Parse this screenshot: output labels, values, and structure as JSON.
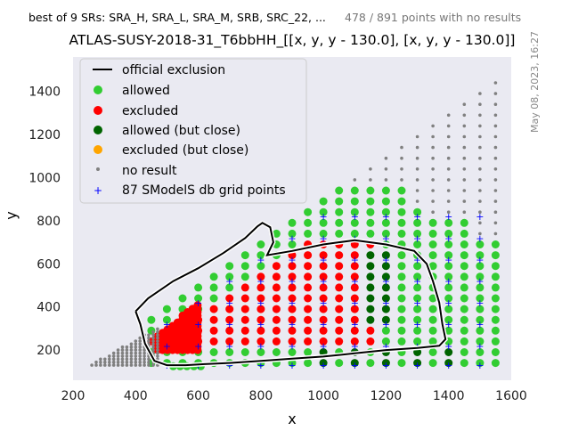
{
  "header": {
    "srs_text": "best of 9 SRs: SRA_H, SRA_L, SRA_M, SRB, SRC_22, ...",
    "no_result_text": "478 / 891 points with no results",
    "title": "ATLAS-SUSY-2018-31_T6bbHH_[[x, y, y - 130.0], [x, y, y - 130.0]]",
    "date": "May 08, 2023, 16:27"
  },
  "chart_data": {
    "type": "scatter",
    "xlabel": "x",
    "ylabel": "y",
    "xlim": [
      200,
      1600
    ],
    "ylim": [
      60,
      1560
    ],
    "xticks": [
      "200",
      "400",
      "600",
      "800",
      "1000",
      "1200",
      "1400",
      "1600"
    ],
    "yticks": [
      "200",
      "400",
      "600",
      "800",
      "1000",
      "1200",
      "1400"
    ],
    "grid": false,
    "legend_position": "top-left",
    "legend": [
      {
        "key": "official",
        "label": "official exclusion"
      },
      {
        "key": "allowed",
        "label": "allowed"
      },
      {
        "key": "excluded",
        "label": "excluded"
      },
      {
        "key": "allowed_close",
        "label": "allowed (but close)"
      },
      {
        "key": "excluded_close",
        "label": "excluded (but close)"
      },
      {
        "key": "noresult",
        "label": "no result"
      },
      {
        "key": "grid",
        "label": "87 SModelS db grid points"
      }
    ],
    "colors": {
      "background": "#eaeaf2",
      "allowed": "#32cd32",
      "excluded": "#ff0000",
      "allowed_close": "#006400",
      "excluded_close": "#ffa500",
      "noresult": "#808080",
      "grid": "#0000ff",
      "official": "#000000"
    },
    "official_exclusion": [
      [
        400,
        380
      ],
      [
        440,
        440
      ],
      [
        520,
        520
      ],
      [
        600,
        580
      ],
      [
        680,
        650
      ],
      [
        750,
        720
      ],
      [
        790,
        775
      ],
      [
        805,
        790
      ],
      [
        830,
        770
      ],
      [
        840,
        700
      ],
      [
        820,
        640
      ],
      [
        900,
        660
      ],
      [
        1000,
        690
      ],
      [
        1100,
        710
      ],
      [
        1200,
        690
      ],
      [
        1290,
        660
      ],
      [
        1330,
        600
      ],
      [
        1350,
        520
      ],
      [
        1370,
        420
      ],
      [
        1380,
        320
      ],
      [
        1390,
        250
      ],
      [
        1370,
        220
      ],
      [
        1300,
        210
      ],
      [
        1200,
        200
      ],
      [
        1100,
        185
      ],
      [
        1000,
        170
      ],
      [
        900,
        160
      ],
      [
        800,
        150
      ],
      [
        700,
        140
      ],
      [
        620,
        135
      ],
      [
        560,
        130
      ],
      [
        500,
        130
      ],
      [
        460,
        150
      ],
      [
        430,
        230
      ],
      [
        415,
        320
      ],
      [
        400,
        380
      ]
    ]
  }
}
